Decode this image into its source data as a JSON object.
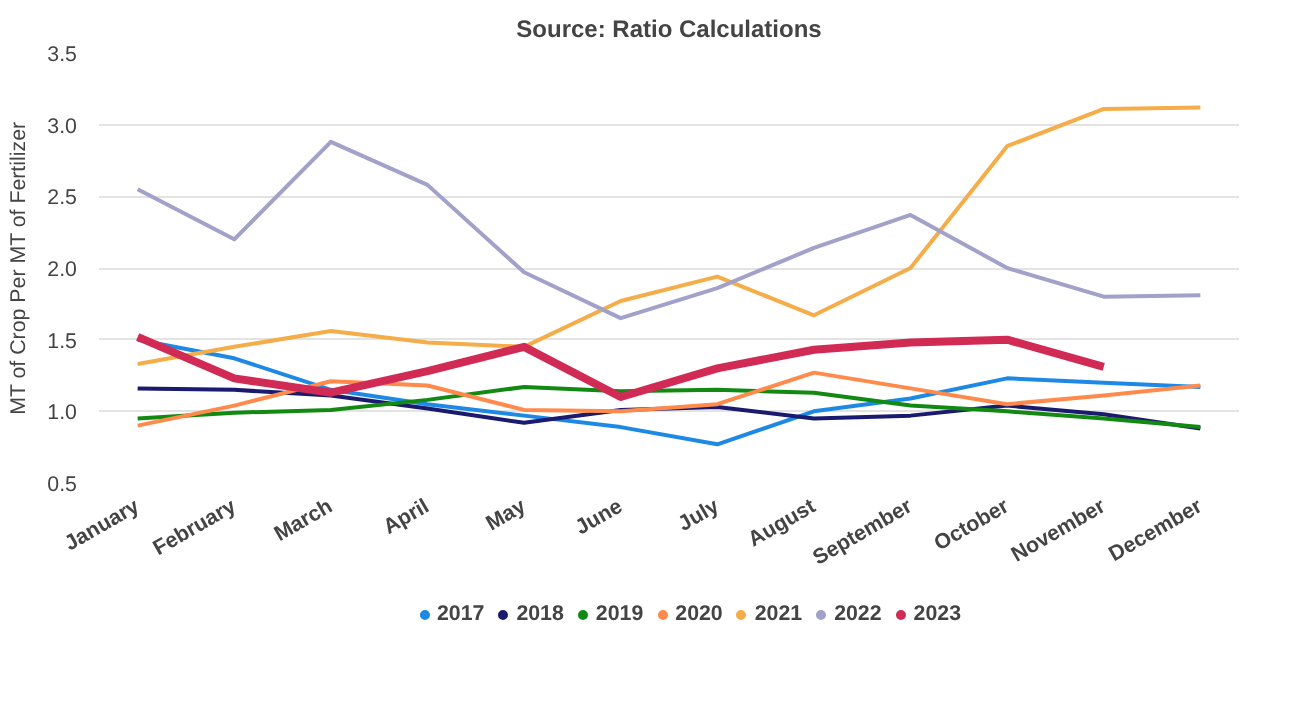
{
  "chart_data": {
    "type": "line",
    "title": "Source: Ratio Calculations",
    "ylabel": "MT of Crop Per MT of Fertilizer",
    "categories": [
      "January",
      "February",
      "March",
      "April",
      "May",
      "June",
      "July",
      "August",
      "September",
      "October",
      "November",
      "December"
    ],
    "series": [
      {
        "name": "2017",
        "color": "#1e88e5",
        "values": [
          1.5,
          1.37,
          1.15,
          1.05,
          0.97,
          0.89,
          0.77,
          1.0,
          1.09,
          1.23,
          1.2,
          1.17
        ]
      },
      {
        "name": "2018",
        "color": "#1a1a6e",
        "values": [
          1.16,
          1.15,
          1.11,
          1.02,
          0.92,
          1.01,
          1.03,
          0.95,
          0.97,
          1.04,
          0.98,
          0.88
        ]
      },
      {
        "name": "2019",
        "color": "#128a12",
        "values": [
          0.95,
          0.99,
          1.01,
          1.08,
          1.17,
          1.14,
          1.15,
          1.13,
          1.04,
          1.0,
          0.95,
          0.89
        ]
      },
      {
        "name": "2020",
        "color": "#ff8a4c",
        "values": [
          0.9,
          1.04,
          1.21,
          1.18,
          1.01,
          1.0,
          1.05,
          1.27,
          1.16,
          1.05,
          1.11,
          1.18
        ]
      },
      {
        "name": "2021",
        "color": "#f4ad48",
        "values": [
          1.33,
          1.45,
          1.56,
          1.48,
          1.45,
          1.77,
          1.94,
          1.67,
          2.0,
          2.85,
          3.11,
          3.12
        ]
      },
      {
        "name": "2022",
        "color": "#a1a1c9",
        "values": [
          2.55,
          2.2,
          2.88,
          2.58,
          1.97,
          1.65,
          1.86,
          2.14,
          2.37,
          2.0,
          1.8,
          1.81
        ]
      },
      {
        "name": "2023",
        "color": "#d02a55",
        "values": [
          1.52,
          1.23,
          1.13,
          1.28,
          1.45,
          1.1,
          1.3,
          1.43,
          1.48,
          1.5,
          1.31,
          null
        ]
      }
    ],
    "ylim": [
      0.5,
      3.5
    ],
    "yticks": [
      {
        "value": 0.5,
        "label": "0.5"
      },
      {
        "value": 1,
        "label": "1.0"
      },
      {
        "value": 1.5,
        "label": "1.5"
      },
      {
        "value": 2,
        "label": "2.0"
      },
      {
        "value": 2.5,
        "label": "2.5"
      },
      {
        "value": 3,
        "label": "3.0"
      },
      {
        "value": 3.5,
        "label": "3.5"
      }
    ],
    "grid": "y",
    "legend": "bottom",
    "marker": "none",
    "line_style": "solid"
  }
}
